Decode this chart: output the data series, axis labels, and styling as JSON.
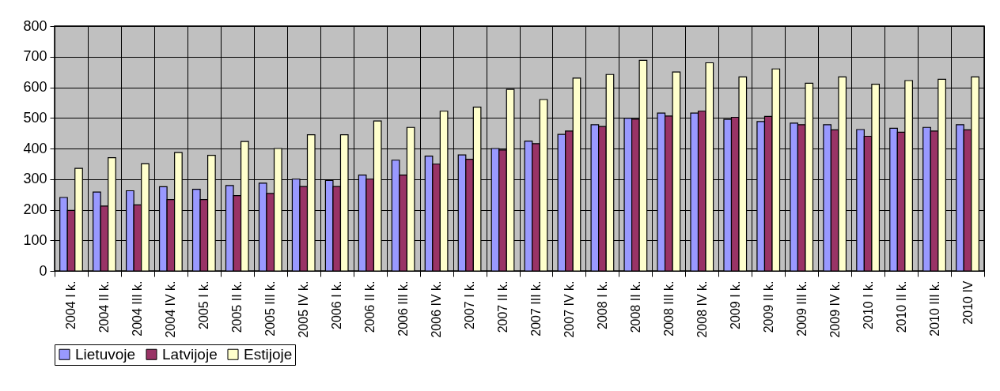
{
  "chart_data": {
    "type": "bar",
    "categories": [
      "2004 I k.",
      "2004 II k.",
      "2004 III k.",
      "2004 IV k.",
      "2005 I k.",
      "2005 II k.",
      "2005 III k.",
      "2005 IV k.",
      "2006 I k.",
      "2006 II k.",
      "2006 III k.",
      "2006 IV k.",
      "2007 I k.",
      "2007 II k.",
      "2007 III k.",
      "2007 IV k.",
      "2008 I k.",
      "2008 II k.",
      "2008 III k.",
      "2008 IV k.",
      "2009 I k.",
      "2009 II k.",
      "2009 III k.",
      "2009 IV k.",
      "2010 I k.",
      "2010 II k.",
      "2010 III k.",
      "2010 IV"
    ],
    "series": [
      {
        "name": "Lietuvoje",
        "color": "#9999ff",
        "values": [
          240,
          258,
          262,
          275,
          267,
          279,
          287,
          300,
          296,
          313,
          362,
          375,
          379,
          400,
          424,
          446,
          478,
          499,
          516,
          516,
          495,
          488,
          483,
          478,
          462,
          466,
          469,
          478
        ]
      },
      {
        "name": "Latvijoje",
        "color": "#993366",
        "values": [
          198,
          212,
          216,
          233,
          233,
          246,
          253,
          276,
          276,
          300,
          313,
          349,
          365,
          395,
          416,
          457,
          472,
          496,
          506,
          522,
          502,
          505,
          478,
          461,
          440,
          453,
          457,
          461
        ]
      },
      {
        "name": "Estijoje",
        "color": "#ffffcc",
        "values": [
          335,
          370,
          350,
          387,
          378,
          423,
          400,
          445,
          445,
          490,
          469,
          522,
          535,
          593,
          560,
          630,
          642,
          688,
          650,
          680,
          634,
          660,
          613,
          634,
          610,
          622,
          626,
          634
        ]
      }
    ],
    "ylim": [
      0,
      800
    ],
    "yticks": [
      0,
      100,
      200,
      300,
      400,
      500,
      600,
      700,
      800
    ],
    "grid": true,
    "legend": "bottom"
  }
}
